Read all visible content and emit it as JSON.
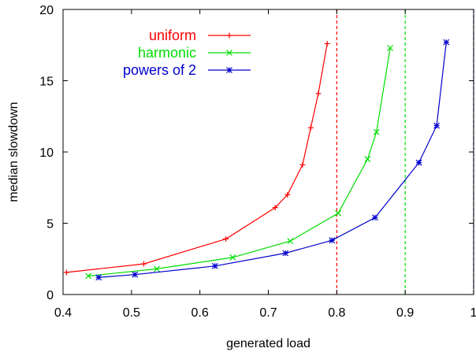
{
  "chart_data": {
    "type": "line",
    "xlabel": "generated load",
    "ylabel": "median slowdown",
    "xlim": [
      0.4,
      1.0
    ],
    "ylim": [
      0,
      20
    ],
    "x_ticks": [
      0.4,
      0.5,
      0.6,
      0.7,
      0.8,
      0.9,
      1.0
    ],
    "x_tick_labels": [
      "0.4",
      "0.5",
      "0.6",
      "0.7",
      "0.8",
      "0.9",
      "1"
    ],
    "y_ticks": [
      0,
      5,
      10,
      15,
      20
    ],
    "y_tick_labels": [
      "0",
      "5",
      "10",
      "15",
      "20"
    ],
    "grid": false,
    "legend_position": "top-left",
    "series": [
      {
        "name": "uniform",
        "color": "#ff0000",
        "marker": "plus",
        "x": [
          0.405,
          0.518,
          0.638,
          0.71,
          0.728,
          0.75,
          0.762,
          0.773,
          0.786
        ],
        "y": [
          1.55,
          2.15,
          3.9,
          6.1,
          7.0,
          9.1,
          11.7,
          14.1,
          17.6
        ]
      },
      {
        "name": "harmonic",
        "color": "#00dd00",
        "marker": "cross",
        "x": [
          0.437,
          0.537,
          0.648,
          0.732,
          0.802,
          0.845,
          0.858,
          0.878
        ],
        "y": [
          1.3,
          1.8,
          2.6,
          3.75,
          5.7,
          9.5,
          11.4,
          17.3
        ]
      },
      {
        "name": "powers of 2",
        "color": "#0000cc",
        "marker": "star",
        "x": [
          0.452,
          0.505,
          0.622,
          0.725,
          0.793,
          0.856,
          0.92,
          0.946,
          0.96
        ],
        "y": [
          1.2,
          1.4,
          2.0,
          2.9,
          3.8,
          5.4,
          9.25,
          11.85,
          17.7
        ]
      }
    ],
    "vlines": [
      {
        "x": 0.8,
        "color": "#ff0000",
        "style": "dashed"
      },
      {
        "x": 0.9,
        "color": "#00dd00",
        "style": "dashed"
      },
      {
        "x": 1.0,
        "color": "#0000cc",
        "style": "dashed"
      }
    ]
  }
}
